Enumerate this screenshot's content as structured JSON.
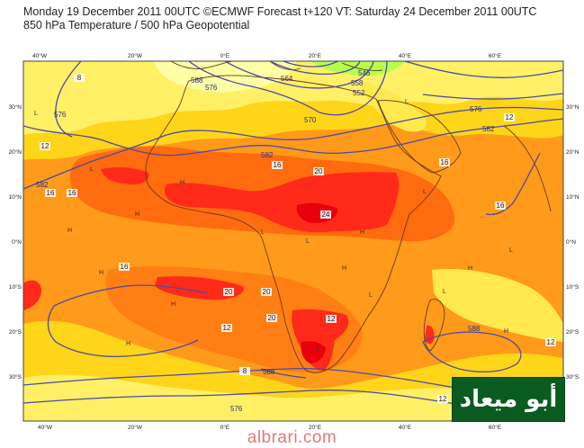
{
  "header": {
    "line1": "Monday 19 December 2011 00UTC ©ECMWF Forecast t+120 VT: Saturday 24 December 2011 00UTC",
    "line2": "850 hPa Temperature / 500 hPa Geopotential"
  },
  "axes": {
    "lon_top": [
      "40°W",
      "20°W",
      "0°E",
      "20°E",
      "40°E",
      "60°E"
    ],
    "lon_bottom": [
      "40°W",
      "20°W",
      "0°E",
      "20°E",
      "40°E",
      "60°E"
    ],
    "lat_left": [
      "30°N",
      "20°N",
      "10°N",
      "0°N",
      "10°S",
      "20°S",
      "30°S"
    ],
    "lat_right": [
      "30°N",
      "20°N",
      "10°N",
      "0°N",
      "10°S",
      "20°S",
      "30°S"
    ]
  },
  "contour_labels": {
    "temperature": [
      "8",
      "12",
      "16",
      "16",
      "16",
      "20",
      "24",
      "16",
      "20",
      "20",
      "20",
      "12",
      "12",
      "16",
      "12",
      "16",
      "12",
      "12",
      "8"
    ],
    "geopotential": [
      "576",
      "582",
      "576",
      "582",
      "588",
      "564",
      "570",
      "558",
      "552",
      "546",
      "576",
      "582",
      "588",
      "588",
      "576"
    ]
  },
  "pressure_marks": [
    "H",
    "H",
    "H",
    "H",
    "H",
    "H",
    "H",
    "H",
    "H",
    "H",
    "L",
    "L",
    "L",
    "L",
    "L",
    "L",
    "L",
    "L",
    "L",
    "L"
  ],
  "colors": {
    "ocean_cool": "#ffffa6",
    "mild": "#fff066",
    "yellow": "#ffd51a",
    "orange": "#ff9a1a",
    "hot": "#ff6b0f",
    "very_hot": "#ff2a1a",
    "red": "#e8000a",
    "cold": "#b6ff4d",
    "geo_line": "#4b4ba8",
    "coast": "#6b3a1a"
  },
  "brand": {
    "text": "أبو ميعاد"
  },
  "site": {
    "text": "albrari.com"
  }
}
